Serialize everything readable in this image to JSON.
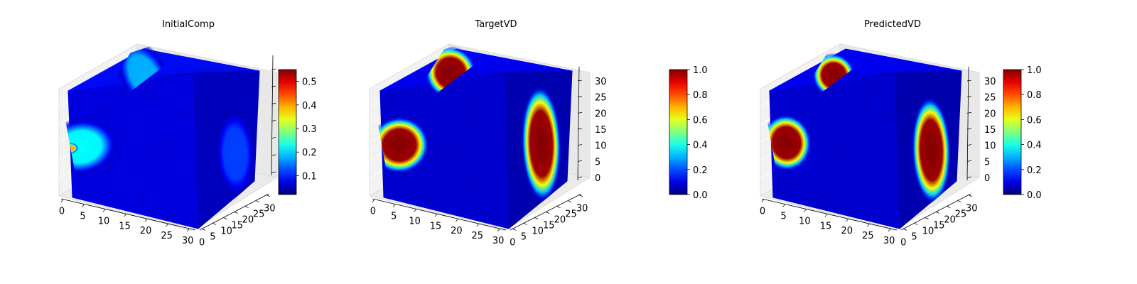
{
  "chart_data": [
    {
      "type": "voxel3d",
      "title": "InitialComp",
      "x_ticks": [
        "0",
        "5",
        "10",
        "15",
        "20",
        "25",
        "30"
      ],
      "y_ticks": [
        "0",
        "5",
        "10",
        "15",
        "20",
        "25",
        "30"
      ],
      "z_ticks": [],
      "xlim": [
        0,
        32
      ],
      "ylim": [
        0,
        32
      ],
      "zlim": [
        0,
        32
      ],
      "colormap": "jet",
      "colorbar": {
        "ticks": [
          "0.1",
          "0.2",
          "0.3",
          "0.4",
          "0.5"
        ],
        "range": [
          0.02,
          0.55
        ]
      },
      "blobs": [
        {
          "face": "front",
          "u": 0.08,
          "v": 0.48,
          "ru": 0.3,
          "rv": 0.27,
          "value": 0.22
        },
        {
          "face": "front",
          "u": 0.0,
          "v": 0.46,
          "ru": 0.06,
          "rv": 0.05,
          "value": 0.4
        },
        {
          "face": "top",
          "u": 0.28,
          "v": 0.55,
          "ru": 0.28,
          "rv": 0.32,
          "value": 0.18
        },
        {
          "face": "side",
          "u": 0.65,
          "v": 0.35,
          "ru": 0.32,
          "rv": 0.3,
          "value": 0.12
        }
      ]
    },
    {
      "type": "voxel3d",
      "title": "TargetVD",
      "x_ticks": [
        "0",
        "5",
        "10",
        "15",
        "20",
        "25",
        "30"
      ],
      "y_ticks": [
        "0",
        "5",
        "10",
        "15",
        "20",
        "25",
        "30"
      ],
      "z_ticks": [
        "0",
        "5",
        "10",
        "15",
        "20",
        "25",
        "30"
      ],
      "xlim": [
        0,
        32
      ],
      "ylim": [
        0,
        32
      ],
      "zlim": [
        0,
        32
      ],
      "colormap": "jet",
      "colorbar": {
        "ticks": [
          "0.0",
          "0.2",
          "0.4",
          "0.6",
          "0.8",
          "1.0"
        ],
        "range": [
          0.0,
          1.0
        ]
      },
      "blobs": [
        {
          "face": "front",
          "u": 0.14,
          "v": 0.5,
          "ru": 0.24,
          "rv": 0.27,
          "value": 1.0
        },
        {
          "face": "top",
          "u": 0.42,
          "v": 0.68,
          "ru": 0.3,
          "rv": 0.22,
          "value": 1.0
        },
        {
          "face": "side",
          "u": 0.55,
          "v": 0.45,
          "ru": 0.3,
          "rv": 0.38,
          "value": 1.0
        }
      ]
    },
    {
      "type": "voxel3d",
      "title": "PredictedVD",
      "x_ticks": [
        "0",
        "5",
        "10",
        "15",
        "20",
        "25",
        "30"
      ],
      "y_ticks": [
        "0",
        "5",
        "10",
        "15",
        "20",
        "25",
        "30"
      ],
      "z_ticks": [
        "0",
        "5",
        "10",
        "15",
        "20",
        "25",
        "30"
      ],
      "xlim": [
        0,
        32
      ],
      "ylim": [
        0,
        32
      ],
      "zlim": [
        0,
        32
      ],
      "colormap": "jet",
      "colorbar": {
        "ticks": [
          "0.0",
          "0.2",
          "0.4",
          "0.6",
          "0.8",
          "1.0"
        ],
        "range": [
          0.0,
          1.0
        ]
      },
      "blobs": [
        {
          "face": "front",
          "u": 0.12,
          "v": 0.52,
          "ru": 0.2,
          "rv": 0.27,
          "value": 1.0
        },
        {
          "face": "top",
          "u": 0.33,
          "v": 0.68,
          "ru": 0.25,
          "rv": 0.18,
          "value": 1.0
        },
        {
          "face": "side",
          "u": 0.55,
          "v": 0.4,
          "ru": 0.3,
          "rv": 0.35,
          "value": 1.0
        }
      ]
    }
  ]
}
